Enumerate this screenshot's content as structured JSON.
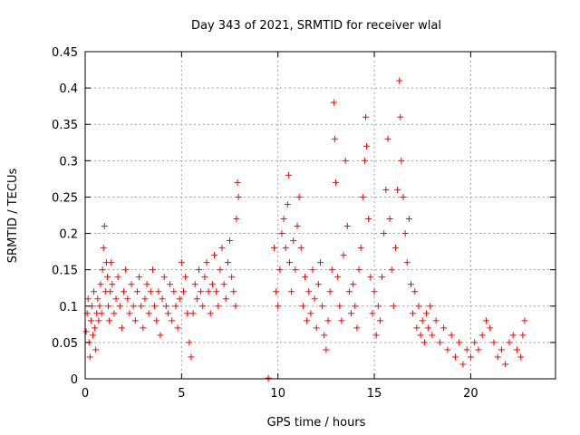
{
  "chart_data": {
    "type": "scatter",
    "title": "Day 343 of 2021, SRMTID for receiver wlal",
    "xlabel": "GPS time / hours",
    "ylabel": "SRMTID / TECUs",
    "xlim": [
      0,
      24.4
    ],
    "ylim": [
      0,
      0.45
    ],
    "xticks": [
      0,
      5,
      10,
      15,
      20
    ],
    "xtick_labels": [
      "0",
      "5",
      "10",
      "15",
      "20"
    ],
    "yticks": [
      0,
      0.05,
      0.1,
      0.15,
      0.2,
      0.25,
      0.3,
      0.35,
      0.4,
      0.45
    ],
    "ytick_labels": [
      "0",
      "0.05",
      "0.1",
      "0.15",
      "0.2",
      "0.25",
      "0.3",
      "0.35",
      "0.4",
      "0.45"
    ],
    "grid": true,
    "marker": "+",
    "color": "#ff0000",
    "series": [
      {
        "name": "SRMTID",
        "points": [
          [
            0.05,
            0.065
          ],
          [
            0.1,
            0.09
          ],
          [
            0.15,
            0.11
          ],
          [
            0.2,
            0.05
          ],
          [
            0.25,
            0.03
          ],
          [
            0.3,
            0.08
          ],
          [
            0.35,
            0.1
          ],
          [
            0.4,
            0.06
          ],
          [
            0.45,
            0.12
          ],
          [
            0.5,
            0.07
          ],
          [
            0.55,
            0.04
          ],
          [
            0.6,
            0.09
          ],
          [
            0.65,
            0.11
          ],
          [
            0.7,
            0.08
          ],
          [
            0.75,
            0.1
          ],
          [
            0.8,
            0.13
          ],
          [
            0.85,
            0.09
          ],
          [
            0.9,
            0.15
          ],
          [
            0.95,
            0.18
          ],
          [
            1.0,
            0.21
          ],
          [
            1.05,
            0.12
          ],
          [
            1.1,
            0.16
          ],
          [
            1.15,
            0.14
          ],
          [
            1.2,
            0.1
          ],
          [
            1.25,
            0.08
          ],
          [
            1.3,
            0.12
          ],
          [
            1.35,
            0.16
          ],
          [
            1.4,
            0.13
          ],
          [
            1.5,
            0.09
          ],
          [
            1.6,
            0.11
          ],
          [
            1.7,
            0.14
          ],
          [
            1.8,
            0.1
          ],
          [
            1.9,
            0.07
          ],
          [
            2.0,
            0.12
          ],
          [
            2.1,
            0.15
          ],
          [
            2.2,
            0.11
          ],
          [
            2.3,
            0.09
          ],
          [
            2.4,
            0.13
          ],
          [
            2.5,
            0.1
          ],
          [
            2.6,
            0.08
          ],
          [
            2.7,
            0.12
          ],
          [
            2.8,
            0.14
          ],
          [
            2.9,
            0.1
          ],
          [
            3.0,
            0.07
          ],
          [
            3.1,
            0.11
          ],
          [
            3.2,
            0.13
          ],
          [
            3.3,
            0.09
          ],
          [
            3.4,
            0.12
          ],
          [
            3.5,
            0.15
          ],
          [
            3.6,
            0.1
          ],
          [
            3.7,
            0.08
          ],
          [
            3.8,
            0.12
          ],
          [
            3.9,
            0.06
          ],
          [
            4.0,
            0.11
          ],
          [
            4.1,
            0.14
          ],
          [
            4.2,
            0.1
          ],
          [
            4.3,
            0.09
          ],
          [
            4.4,
            0.13
          ],
          [
            4.5,
            0.08
          ],
          [
            4.6,
            0.12
          ],
          [
            4.7,
            0.1
          ],
          [
            4.8,
            0.07
          ],
          [
            4.9,
            0.11
          ],
          [
            5.0,
            0.16
          ],
          [
            5.1,
            0.12
          ],
          [
            5.2,
            0.14
          ],
          [
            5.3,
            0.09
          ],
          [
            5.4,
            0.05
          ],
          [
            5.5,
            0.03
          ],
          [
            5.6,
            0.09
          ],
          [
            5.7,
            0.13
          ],
          [
            5.8,
            0.11
          ],
          [
            5.9,
            0.15
          ],
          [
            6.0,
            0.12
          ],
          [
            6.1,
            0.1
          ],
          [
            6.2,
            0.14
          ],
          [
            6.3,
            0.16
          ],
          [
            6.4,
            0.12
          ],
          [
            6.5,
            0.09
          ],
          [
            6.6,
            0.13
          ],
          [
            6.7,
            0.17
          ],
          [
            6.8,
            0.12
          ],
          [
            6.9,
            0.1
          ],
          [
            7.0,
            0.15
          ],
          [
            7.1,
            0.18
          ],
          [
            7.2,
            0.13
          ],
          [
            7.3,
            0.11
          ],
          [
            7.4,
            0.16
          ],
          [
            7.5,
            0.19
          ],
          [
            7.6,
            0.14
          ],
          [
            7.7,
            0.12
          ],
          [
            7.8,
            0.1
          ],
          [
            7.85,
            0.22
          ],
          [
            7.9,
            0.27
          ],
          [
            7.95,
            0.25
          ],
          [
            9.5,
            0.0
          ],
          [
            9.5,
            0.001
          ],
          [
            9.8,
            0.18
          ],
          [
            9.9,
            0.12
          ],
          [
            10.0,
            0.1
          ],
          [
            10.1,
            0.15
          ],
          [
            10.2,
            0.2
          ],
          [
            10.3,
            0.22
          ],
          [
            10.4,
            0.18
          ],
          [
            10.5,
            0.24
          ],
          [
            10.55,
            0.28
          ],
          [
            10.6,
            0.16
          ],
          [
            10.7,
            0.12
          ],
          [
            10.8,
            0.19
          ],
          [
            10.9,
            0.15
          ],
          [
            11.0,
            0.21
          ],
          [
            11.1,
            0.25
          ],
          [
            11.2,
            0.18
          ],
          [
            11.3,
            0.1
          ],
          [
            11.4,
            0.14
          ],
          [
            11.5,
            0.08
          ],
          [
            11.6,
            0.12
          ],
          [
            11.7,
            0.09
          ],
          [
            11.8,
            0.15
          ],
          [
            11.9,
            0.11
          ],
          [
            12.0,
            0.07
          ],
          [
            12.1,
            0.13
          ],
          [
            12.2,
            0.16
          ],
          [
            12.3,
            0.1
          ],
          [
            12.4,
            0.06
          ],
          [
            12.5,
            0.04
          ],
          [
            12.6,
            0.08
          ],
          [
            12.7,
            0.12
          ],
          [
            12.8,
            0.15
          ],
          [
            12.9,
            0.38
          ],
          [
            12.95,
            0.33
          ],
          [
            13.0,
            0.27
          ],
          [
            13.1,
            0.14
          ],
          [
            13.2,
            0.1
          ],
          [
            13.3,
            0.08
          ],
          [
            13.4,
            0.17
          ],
          [
            13.5,
            0.3
          ],
          [
            13.6,
            0.21
          ],
          [
            13.7,
            0.12
          ],
          [
            13.8,
            0.09
          ],
          [
            13.9,
            0.13
          ],
          [
            14.0,
            0.1
          ],
          [
            14.1,
            0.07
          ],
          [
            14.2,
            0.15
          ],
          [
            14.3,
            0.18
          ],
          [
            14.4,
            0.25
          ],
          [
            14.5,
            0.3
          ],
          [
            14.55,
            0.36
          ],
          [
            14.6,
            0.32
          ],
          [
            14.7,
            0.22
          ],
          [
            14.8,
            0.14
          ],
          [
            14.9,
            0.09
          ],
          [
            15.0,
            0.12
          ],
          [
            15.1,
            0.06
          ],
          [
            15.2,
            0.1
          ],
          [
            15.3,
            0.08
          ],
          [
            15.4,
            0.14
          ],
          [
            15.5,
            0.2
          ],
          [
            15.6,
            0.26
          ],
          [
            15.7,
            0.33
          ],
          [
            15.8,
            0.22
          ],
          [
            15.9,
            0.15
          ],
          [
            16.0,
            0.1
          ],
          [
            16.1,
            0.18
          ],
          [
            16.2,
            0.26
          ],
          [
            16.3,
            0.41
          ],
          [
            16.35,
            0.36
          ],
          [
            16.4,
            0.3
          ],
          [
            16.5,
            0.25
          ],
          [
            16.6,
            0.2
          ],
          [
            16.7,
            0.16
          ],
          [
            16.8,
            0.22
          ],
          [
            16.9,
            0.13
          ],
          [
            17.0,
            0.09
          ],
          [
            17.1,
            0.12
          ],
          [
            17.2,
            0.07
          ],
          [
            17.3,
            0.1
          ],
          [
            17.4,
            0.06
          ],
          [
            17.5,
            0.08
          ],
          [
            17.6,
            0.05
          ],
          [
            17.7,
            0.09
          ],
          [
            17.8,
            0.07
          ],
          [
            17.9,
            0.1
          ],
          [
            18.0,
            0.06
          ],
          [
            18.2,
            0.08
          ],
          [
            18.4,
            0.05
          ],
          [
            18.6,
            0.07
          ],
          [
            18.8,
            0.04
          ],
          [
            19.0,
            0.06
          ],
          [
            19.2,
            0.03
          ],
          [
            19.4,
            0.05
          ],
          [
            19.6,
            0.02
          ],
          [
            19.8,
            0.04
          ],
          [
            20.0,
            0.03
          ],
          [
            20.2,
            0.05
          ],
          [
            20.4,
            0.04
          ],
          [
            20.6,
            0.06
          ],
          [
            20.8,
            0.08
          ],
          [
            21.0,
            0.07
          ],
          [
            21.2,
            0.05
          ],
          [
            21.4,
            0.03
          ],
          [
            21.6,
            0.04
          ],
          [
            21.8,
            0.02
          ],
          [
            22.0,
            0.05
          ],
          [
            22.2,
            0.06
          ],
          [
            22.4,
            0.04
          ],
          [
            22.6,
            0.03
          ],
          [
            22.7,
            0.06
          ],
          [
            22.8,
            0.08
          ]
        ]
      }
    ]
  }
}
